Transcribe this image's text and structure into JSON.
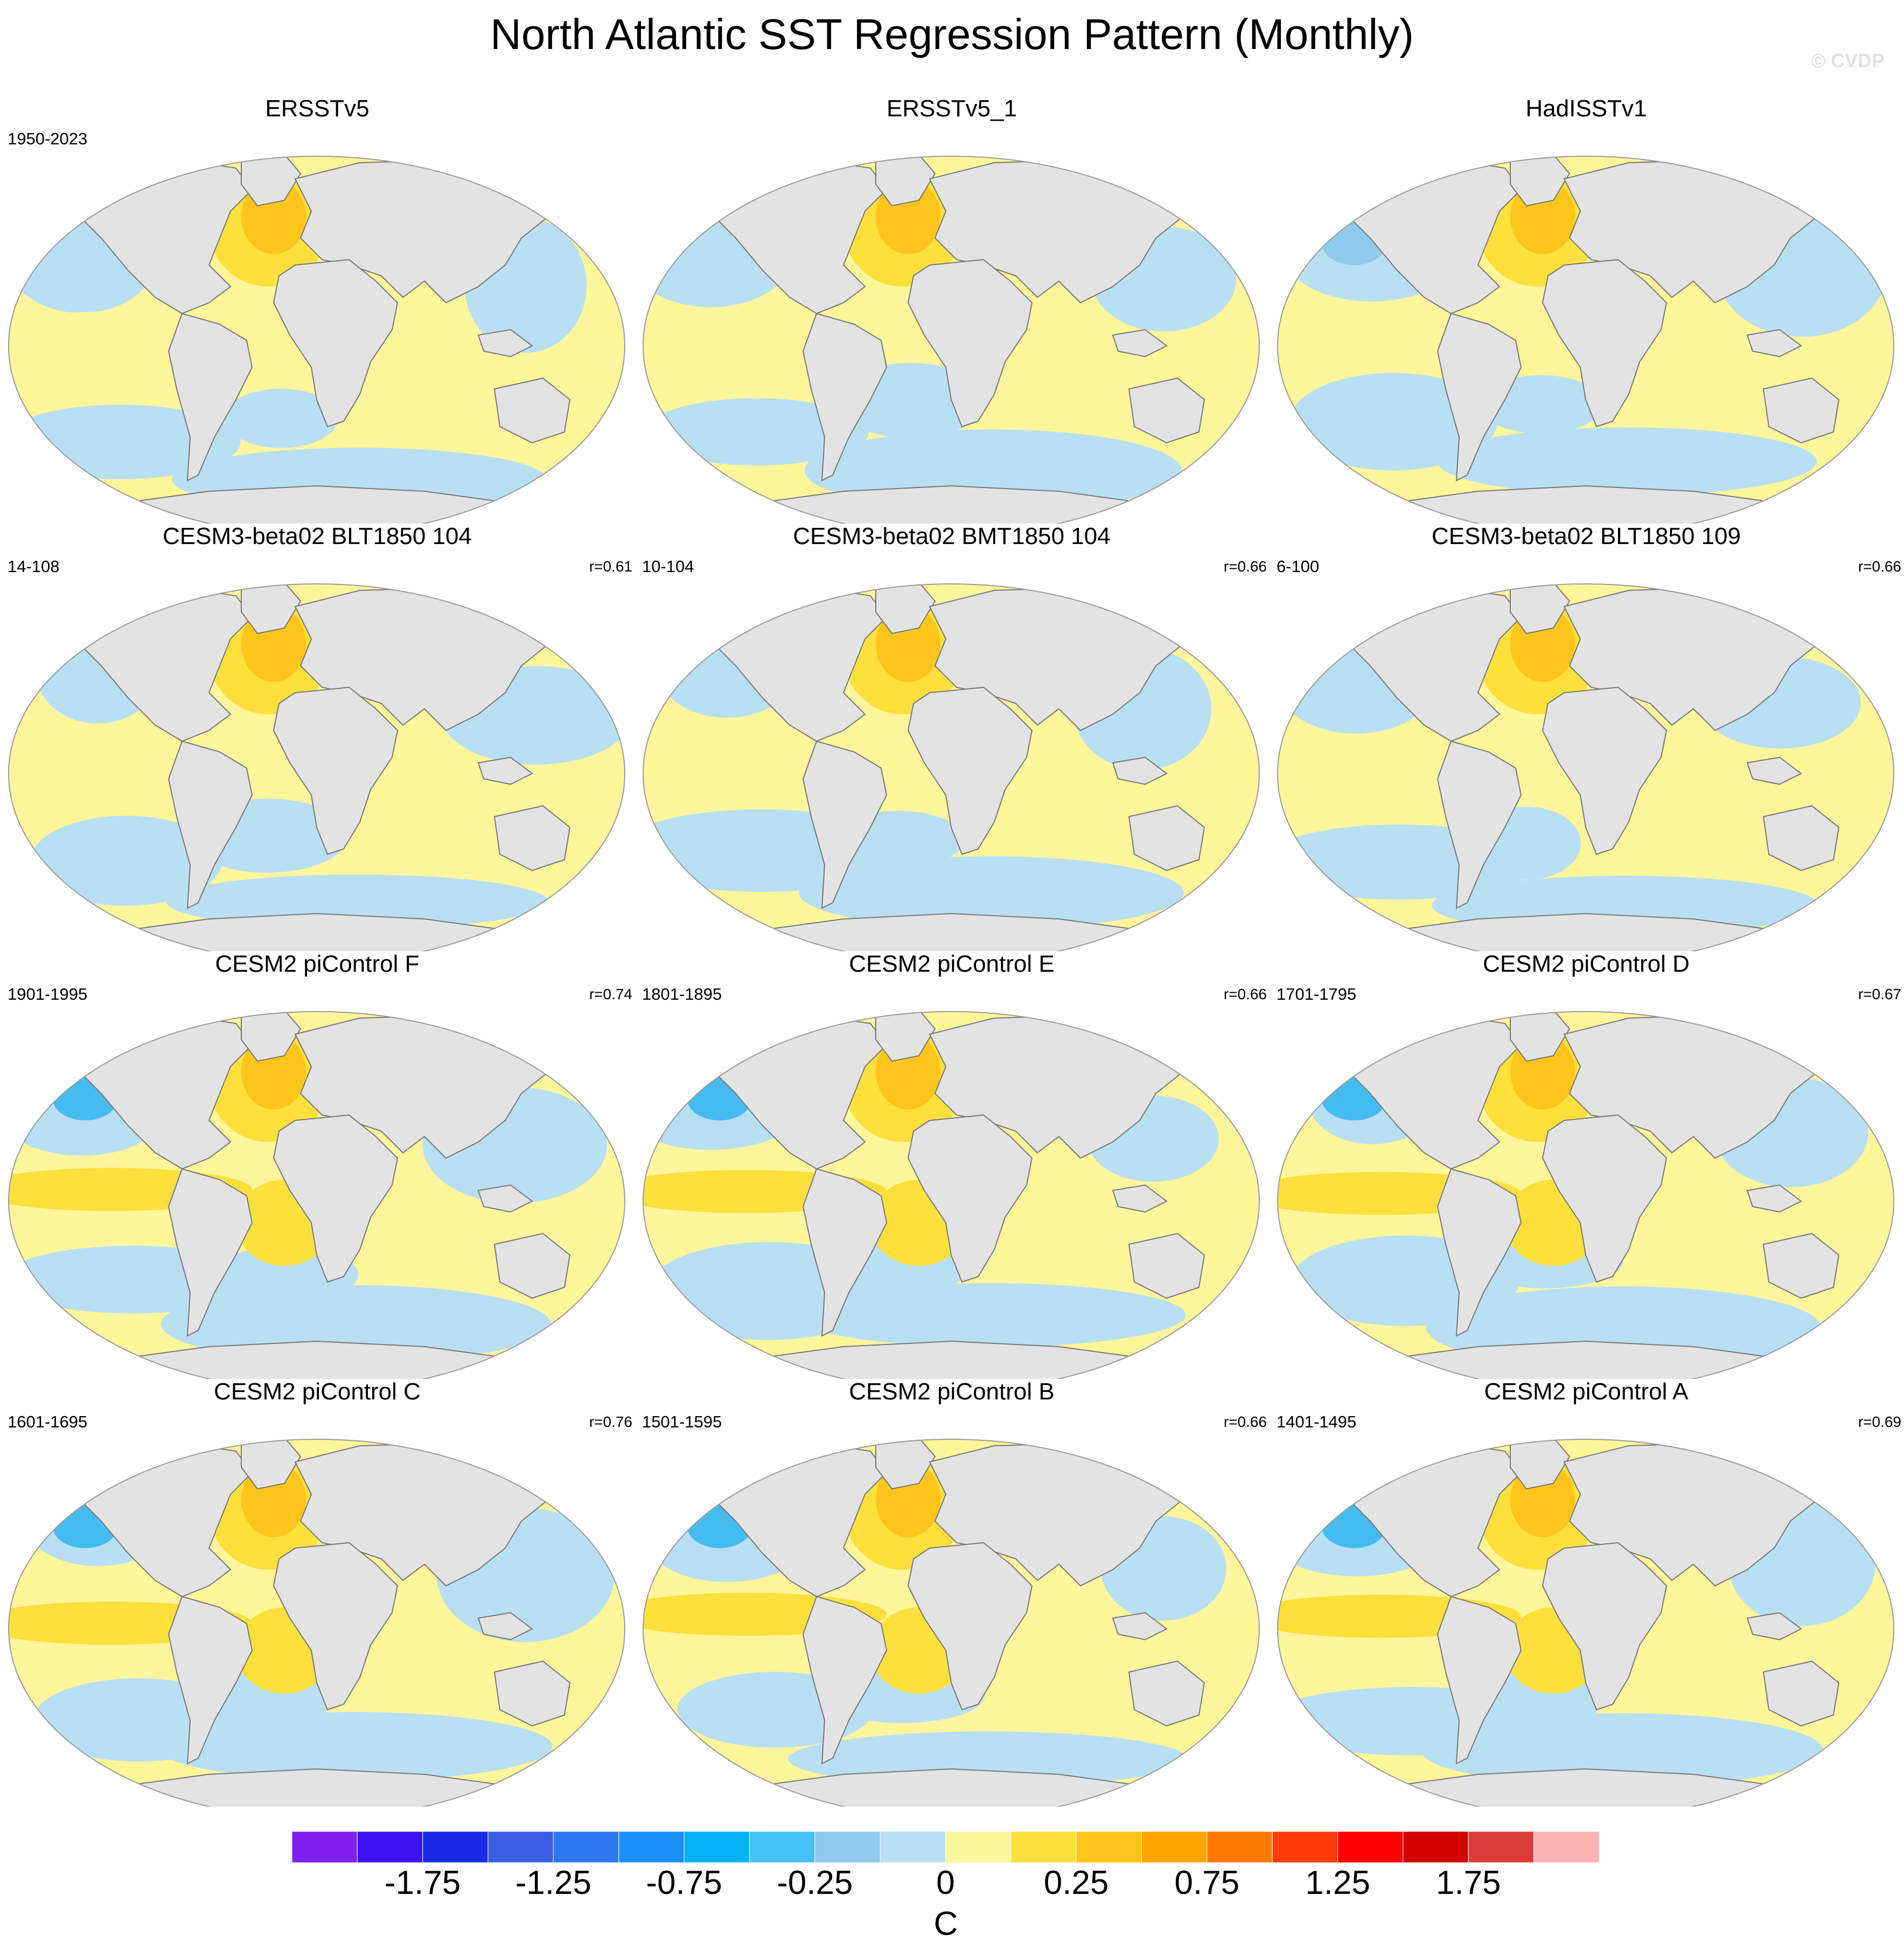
{
  "title": "North Atlantic SST Regression Pattern (Monthly)",
  "copyright": "© CVDP",
  "colors": {
    "land": "#e3e3e3",
    "coast": "#777777",
    "ocean_frame": "#9a9a9a",
    "cold1": "#b9dff4",
    "cold2": "#8ecbec",
    "cold3": "#45bcf0",
    "warm1": "#fff59b",
    "warm2": "#fee03c",
    "warm3": "#ffc51a",
    "warm4": "#ffa500"
  },
  "panels": [
    {
      "title": "ERSSTv5",
      "period": "1950-2023",
      "corr": "",
      "style": 0
    },
    {
      "title": "ERSSTv5_1",
      "period": "",
      "corr": "",
      "style": 1
    },
    {
      "title": "HadISSTv1",
      "period": "",
      "corr": "",
      "style": 2
    },
    {
      "title": "CESM3-beta02 BLT1850 104",
      "period": "14-108",
      "corr": "r=0.61",
      "style": 3
    },
    {
      "title": "CESM3-beta02 BMT1850 104",
      "period": "10-104",
      "corr": "r=0.66",
      "style": 4
    },
    {
      "title": "CESM3-beta02 BLT1850 109",
      "period": "6-100",
      "corr": "r=0.66",
      "style": 5
    },
    {
      "title": "CESM2 piControl F",
      "period": "1901-1995",
      "corr": "r=0.74",
      "style": 6
    },
    {
      "title": "CESM2 piControl E",
      "period": "1801-1895",
      "corr": "r=0.66",
      "style": 7
    },
    {
      "title": "CESM2 piControl D",
      "period": "1701-1795",
      "corr": "r=0.67",
      "style": 8
    },
    {
      "title": "CESM2 piControl C",
      "period": "1601-1695",
      "corr": "r=0.76",
      "style": 9
    },
    {
      "title": "CESM2 piControl B",
      "period": "1501-1595",
      "corr": "r=0.66",
      "style": 10
    },
    {
      "title": "CESM2 piControl A",
      "period": "1401-1495",
      "corr": "r=0.69",
      "style": 11
    }
  ],
  "colorbar": {
    "units": "C",
    "colors": [
      "#8020f0",
      "#3d14f5",
      "#1a2be8",
      "#3c5ee0",
      "#2e78ee",
      "#1c8ff7",
      "#00b2f5",
      "#45c2f5",
      "#8ecbec",
      "#b9dff4",
      "#fff59b",
      "#fee03c",
      "#ffc51a",
      "#ffa500",
      "#ff7a00",
      "#ff3c0a",
      "#ff0000",
      "#d40000",
      "#dd3c3c",
      "#ffb4b4"
    ],
    "labels": [
      {
        "text": "-1.75",
        "boundary": 2
      },
      {
        "text": "-1.25",
        "boundary": 4
      },
      {
        "text": "-0.75",
        "boundary": 6
      },
      {
        "text": "-0.25",
        "boundary": 8
      },
      {
        "text": "0",
        "boundary": 10
      },
      {
        "text": "0.25",
        "boundary": 12
      },
      {
        "text": "0.75",
        "boundary": 14
      },
      {
        "text": "1.25",
        "boundary": 16
      },
      {
        "text": "1.75",
        "boundary": 18
      }
    ]
  }
}
